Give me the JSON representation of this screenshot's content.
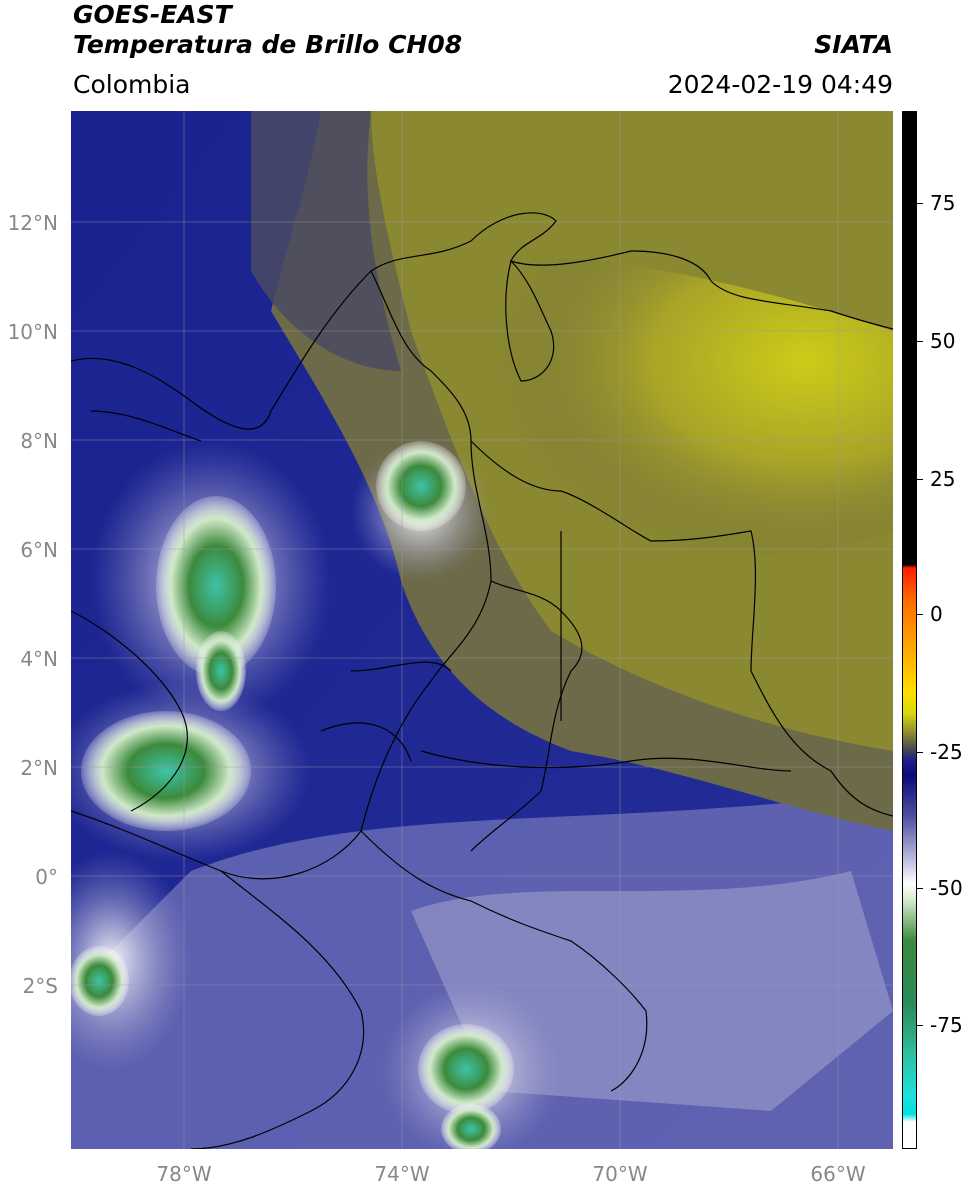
{
  "header": {
    "satellite": "GOES-EAST",
    "product": "Temperatura de Brillo CH08",
    "region": "Colombia",
    "brand": "SIATA",
    "timestamp": "2024-02-19 04:49"
  },
  "map": {
    "lat_ticks": [
      "12°N",
      "10°N",
      "8°N",
      "6°N",
      "4°N",
      "2°N",
      "0°",
      "2°S"
    ],
    "lon_ticks": [
      "78°W",
      "74°W",
      "70°W",
      "66°W"
    ],
    "colors": {
      "warm_dry": "#c8c818",
      "olive": "#8a8a30",
      "dark_gray": "#4a4a55",
      "navy": "#121a88",
      "lavender": "#9a9ac8",
      "white": "#ffffff",
      "green": "#3c8a3c",
      "teal": "#30c0a0"
    }
  },
  "colorbar": {
    "ticks": [
      "75",
      "50",
      "25",
      "0",
      "-25",
      "-50",
      "-75"
    ]
  }
}
